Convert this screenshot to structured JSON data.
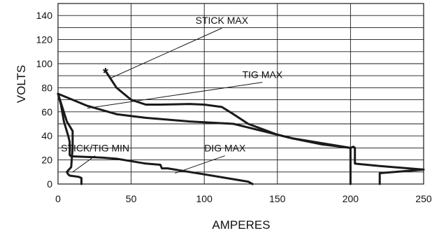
{
  "chart_data": {
    "type": "line",
    "xlabel": "AMPERES",
    "ylabel": "VOLTS",
    "xlim": [
      0,
      250
    ],
    "ylim": [
      0,
      150
    ],
    "x_ticks": [
      0,
      50,
      100,
      150,
      200,
      250
    ],
    "y_ticks": [
      0,
      20,
      40,
      60,
      80,
      100,
      120,
      140
    ],
    "grid": true,
    "series": [
      {
        "name": "STICK MAX",
        "points": [
          [
            33,
            93
          ],
          [
            40,
            80
          ],
          [
            50,
            70
          ],
          [
            60,
            66
          ],
          [
            70,
            66
          ],
          [
            90,
            66.5
          ],
          [
            100,
            66
          ],
          [
            112,
            64
          ],
          [
            120,
            58
          ],
          [
            130,
            50
          ],
          [
            150,
            41
          ],
          [
            160,
            38
          ],
          [
            180,
            33
          ],
          [
            200,
            30
          ],
          [
            202,
            31
          ],
          [
            203,
            30
          ],
          [
            203,
            17
          ],
          [
            220,
            15
          ],
          [
            250,
            12
          ],
          [
            220,
            9
          ],
          [
            220,
            0
          ]
        ]
      },
      {
        "name": "TIG MAX",
        "points": [
          [
            0,
            75
          ],
          [
            20,
            65
          ],
          [
            40,
            58
          ],
          [
            60,
            55
          ],
          [
            90,
            52
          ],
          [
            120,
            50
          ],
          [
            130,
            47
          ],
          [
            150,
            41
          ],
          [
            160,
            38
          ],
          [
            200,
            30
          ],
          [
            200,
            0
          ]
        ]
      },
      {
        "name": "STICK/TIG MIN",
        "points": [
          [
            0,
            75
          ],
          [
            2,
            66
          ],
          [
            4,
            52
          ],
          [
            7,
            40
          ],
          [
            8,
            35
          ],
          [
            8,
            28
          ],
          [
            8,
            24
          ],
          [
            9,
            23
          ],
          [
            30,
            22
          ],
          [
            40,
            21
          ],
          [
            50,
            19
          ],
          [
            60,
            17
          ],
          [
            70,
            16
          ],
          [
            71,
            13
          ],
          [
            75,
            13
          ],
          [
            80,
            12
          ],
          [
            100,
            8
          ],
          [
            120,
            4
          ],
          [
            130,
            2
          ],
          [
            133,
            0
          ]
        ]
      },
      {
        "name": "DIG MAX",
        "points": [
          [
            0,
            75
          ],
          [
            6,
            52
          ],
          [
            10,
            44
          ],
          [
            10,
            30
          ],
          [
            9,
            14
          ],
          [
            6,
            10
          ],
          [
            7,
            8
          ],
          [
            8,
            7
          ],
          [
            14,
            6
          ],
          [
            16,
            5
          ],
          [
            16,
            0
          ]
        ]
      }
    ],
    "annotations": [
      {
        "text": "STICK MAX",
        "x": 94,
        "y": 133,
        "points_to": [
          36,
          88
        ]
      },
      {
        "text": "TIG MAX",
        "x": 126,
        "y": 88,
        "points_to": [
          20,
          63
        ]
      },
      {
        "text": "STICK/TIG MIN",
        "x": 2,
        "y": 27,
        "points_to": [
          10,
          10
        ]
      },
      {
        "text": "DIG MAX",
        "x": 100,
        "y": 27,
        "points_to": [
          80,
          9
        ]
      }
    ],
    "marker": {
      "symbol": "*",
      "x": 33,
      "y": 93
    }
  },
  "colors": {
    "line": "#1a1a1a",
    "grid": "#1a1a1a",
    "background": "#ffffff"
  }
}
